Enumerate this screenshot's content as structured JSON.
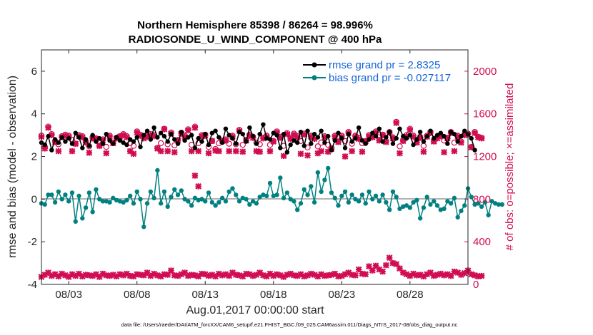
{
  "chart_data": {
    "type": "line",
    "title": "Northern Hemisphere 85398 / 86264 = 98.996%",
    "subtitle": "RADIOSONDE_U_WIND_COMPONENT @ 400 hPa",
    "xlabel": "Aug.01,2017 00:00:00 start",
    "ylabel": "rmse and bias (model - observation)",
    "y2label": "# of obs: o=possible; ×=assimilated",
    "footnote": "data file: /Users/raeder/DAI/ATM_forcXX/CAM6_setup/f.e21.FHIST_BGC.f09_025.CAM6assim.011/Diags_NTrS_2017-08/obs_diag_output.nc",
    "x_start_day": 1,
    "x_end_day": 32.25,
    "xticks": [
      {
        "day": 3,
        "label": "08/03"
      },
      {
        "day": 8,
        "label": "08/08"
      },
      {
        "day": 13,
        "label": "08/13"
      },
      {
        "day": 18,
        "label": "08/18"
      },
      {
        "day": 23,
        "label": "08/23"
      },
      {
        "day": 28,
        "label": "08/28"
      }
    ],
    "ylim": [
      -4,
      7
    ],
    "yticks": [
      "-4",
      "-2",
      "0",
      "2",
      "4",
      "6"
    ],
    "y2lim": [
      0,
      2200
    ],
    "y2ticks": [
      "0",
      "400",
      "800",
      "1200",
      "1600",
      "2000"
    ],
    "legend": {
      "location": "top-right",
      "entries": [
        "rmse grand pr = 2.8325",
        "bias grand pr = -0.027117"
      ]
    },
    "series": [
      {
        "name": "rmse grand pr = 2.8325",
        "axis": "left",
        "color": "#000000",
        "marker": "circle",
        "values": [
          2.65,
          2.55,
          2.95,
          2.3,
          2.8,
          2.65,
          2.9,
          2.7,
          2.85,
          2.6,
          3.1,
          2.9,
          2.4,
          2.8,
          2.5,
          3.0,
          2.7,
          2.85,
          2.6,
          3.05,
          2.75,
          2.6,
          2.9,
          2.75,
          2.65,
          2.55,
          2.8,
          2.7,
          2.9,
          2.45,
          3.0,
          3.2,
          2.8,
          3.35,
          2.9,
          3.1,
          2.95,
          2.7,
          3.05,
          2.8,
          2.6,
          3.15,
          2.75,
          2.9,
          3.0,
          2.4,
          2.85,
          2.7,
          3.05,
          2.55,
          3.1,
          3.2,
          2.9,
          2.65,
          3.3,
          3.0,
          2.85,
          2.6,
          3.15,
          3.05,
          2.7,
          3.35,
          2.95,
          2.6,
          3.05,
          3.5,
          2.85,
          2.8,
          3.1,
          3.0,
          2.4,
          3.05,
          2.2,
          2.55,
          2.75,
          2.65,
          3.15,
          2.5,
          3.2,
          2.6,
          3.05,
          2.9,
          3.2,
          2.65,
          2.95,
          2.3,
          2.75,
          3.1,
          2.85,
          2.4,
          3.05,
          2.7,
          2.85,
          3.35,
          2.75,
          2.6,
          2.8,
          3.1,
          2.95,
          3.3,
          2.7,
          2.9,
          3.15,
          2.6,
          2.85,
          3.3,
          2.95,
          2.85,
          3.0,
          2.55,
          2.8,
          3.15,
          2.7,
          2.95,
          3.2,
          2.85,
          3.0,
          3.1,
          2.95,
          2.6,
          3.15,
          3.05,
          2.7,
          2.95,
          3.2,
          3.05,
          2.85,
          2.3
        ]
      },
      {
        "name": "bias grand pr = -0.027117",
        "axis": "left",
        "color": "#008080",
        "marker": "circle",
        "values": [
          -0.2,
          -0.25,
          0.2,
          0.2,
          -0.15,
          0.35,
          0.0,
          0.2,
          -0.1,
          0.3,
          -1.05,
          0.15,
          -0.9,
          -0.4,
          0.3,
          -0.6,
          0.45,
          0.0,
          -0.1,
          -0.1,
          -0.15,
          0.05,
          -0.05,
          -0.1,
          -0.15,
          -0.05,
          0.15,
          -0.2,
          0.35,
          0.0,
          -1.3,
          -0.2,
          0.35,
          0.05,
          1.35,
          -0.2,
          0.35,
          -0.35,
          0.1,
          0.45,
          0.2,
          0.4,
          0.0,
          -0.1,
          -0.3,
          0.05,
          -0.05,
          0.0,
          -0.1,
          0.3,
          -0.15,
          -0.3,
          -0.15,
          0.05,
          -0.1,
          0.35,
          0.5,
          0.2,
          -0.1,
          0.05,
          0.0,
          -0.25,
          -0.1,
          -0.2,
          0.1,
          0.2,
          0.15,
          0.75,
          0.15,
          0.2,
          1.0,
          0.05,
          0.3,
          0.0,
          -0.1,
          -0.5,
          -0.2,
          0.45,
          0.2,
          0.6,
          -0.15,
          1.25,
          0.35,
          0.9,
          1.45,
          0.3,
          0.05,
          -0.3,
          0.15,
          0.35,
          -0.15,
          0.2,
          0.0,
          -0.1,
          0.2,
          -0.2,
          0.35,
          0.0,
          0.15,
          -0.1,
          0.2,
          -0.15,
          -0.5,
          0.35,
          0.1,
          -0.45,
          -0.35,
          -0.3,
          -0.4,
          -0.15,
          -0.05,
          -0.9,
          -0.4,
          0.1,
          -0.25,
          -0.1,
          -0.3,
          -0.5,
          -0.45,
          -0.1,
          -0.2,
          0.05,
          -0.85,
          -0.55,
          -0.3,
          0.5,
          0.1,
          -0.25,
          -0.2,
          -0.35,
          -0.15,
          -0.75,
          -0.1,
          -0.2,
          -0.25,
          -0.25
        ]
      },
      {
        "name": "possible",
        "axis": "right",
        "color": "#d10d52",
        "marker": "circle",
        "values": [
          1395,
          1290,
          1480,
          1410,
          1345,
          1315,
          1390,
          1405,
          1395,
          1355,
          1320,
          1400,
          1390,
          1340,
          1295,
          1380,
          1370,
          1300,
          1360,
          1290,
          1395,
          1330,
          1375,
          1390,
          1410,
          1390,
          1325,
          1300,
          1435,
          1405,
          1380,
          1395,
          1410,
          1400,
          1280,
          1325,
          1460,
          1315,
          1425,
          1305,
          1355,
          1420,
          1395,
          1455,
          1310,
          1480,
          1325,
          1400,
          1405,
          1290,
          1345,
          1270,
          1325,
          1350,
          1360,
          1320,
          1395,
          1315,
          1450,
          1310,
          1355,
          1405,
          1385,
          1330,
          1315,
          1375,
          1395,
          1310,
          1345,
          1435,
          1385,
          1300,
          1420,
          1375,
          1415,
          1390,
          1345,
          1415,
          1285,
          1395,
          1375,
          1295,
          1330,
          1390,
          1310,
          1280,
          1395,
          1340,
          1395,
          1345,
          1430,
          1320,
          1395,
          1375,
          1325,
          1345,
          1400,
          1390,
          1435,
          1355,
          1405,
          1345,
          1430,
          1380,
          1525,
          1295,
          1350,
          1400,
          1460,
          1395,
          1335,
          1380,
          1300,
          1395,
          1430,
          1345,
          1380,
          1395,
          1350,
          1375,
          1430,
          1330,
          1395,
          1340,
          1405,
          1415,
          1290,
          1430,
          1385,
          1375
        ]
      },
      {
        "name": "assimilated",
        "axis": "right",
        "color": "#d10d52",
        "marker": "x",
        "values": [
          1385,
          1275,
          1470,
          1400,
          1335,
          1250,
          1380,
          1395,
          1385,
          1250,
          1320,
          1390,
          1380,
          1330,
          1235,
          1370,
          1365,
          1300,
          1350,
          1230,
          1385,
          1325,
          1370,
          1385,
          1400,
          1380,
          1250,
          1225,
          1425,
          1395,
          1370,
          1385,
          1400,
          1390,
          1275,
          1250,
          1455,
          1250,
          1415,
          1240,
          1350,
          1415,
          1385,
          1445,
          1250,
          1470,
          1250,
          1390,
          1395,
          1230,
          1345,
          1255,
          1250,
          1345,
          1350,
          1250,
          1385,
          1250,
          1440,
          1245,
          1350,
          1395,
          1375,
          1250,
          1245,
          1370,
          1385,
          1250,
          1340,
          1425,
          1375,
          1205,
          1410,
          1365,
          1405,
          1380,
          1225,
          1405,
          1210,
          1385,
          1365,
          1230,
          1250,
          1380,
          1245,
          1270,
          1385,
          1335,
          1385,
          1200,
          1420,
          1250,
          1385,
          1365,
          1245,
          1340,
          1390,
          1380,
          1425,
          1350,
          1400,
          1335,
          1420,
          1370,
          1515,
          1230,
          1345,
          1390,
          1450,
          1385,
          1330,
          1375,
          1245,
          1385,
          1420,
          1340,
          1370,
          1390,
          1240,
          1370,
          1420,
          1250,
          1385,
          1330,
          1400,
          1405,
          1285,
          1420,
          1380,
          1370
        ]
      },
      {
        "name": "outliers",
        "axis": "right",
        "color": "#d10d52",
        "marker": "x",
        "points": [
          {
            "day": 12.25,
            "value": 1020
          },
          {
            "day": 12.5,
            "value": 920
          }
        ]
      },
      {
        "name": "rejected",
        "axis": "right",
        "color": "#d10d52",
        "marker": "x",
        "values": [
          70,
          90,
          110,
          80,
          95,
          75,
          100,
          85,
          70,
          95,
          80,
          100,
          75,
          90,
          85,
          80,
          95,
          70,
          100,
          85,
          80,
          90,
          75,
          95,
          85,
          100,
          80,
          75,
          95,
          90,
          85,
          110,
          80,
          100,
          85,
          75,
          95,
          90,
          130,
          85,
          80,
          95,
          110,
          80,
          90,
          85,
          75,
          100,
          95,
          80,
          90,
          75,
          100,
          85,
          95,
          80,
          110,
          90,
          85,
          75,
          100,
          95,
          80,
          90,
          110,
          85,
          75,
          100,
          80,
          95,
          85,
          70,
          90,
          100,
          85,
          80,
          95,
          75,
          85,
          100,
          90,
          75,
          95,
          80,
          85,
          90,
          100,
          75,
          80,
          95,
          110,
          90,
          85,
          140,
          100,
          95,
          170,
          130,
          175,
          140,
          120,
          180,
          250,
          200,
          190,
          150,
          110,
          95,
          80,
          100,
          85,
          90,
          75,
          95,
          110,
          80,
          90,
          100,
          85,
          95,
          80,
          120,
          110,
          90,
          105,
          130,
          95,
          85,
          75,
          80
        ]
      }
    ]
  }
}
